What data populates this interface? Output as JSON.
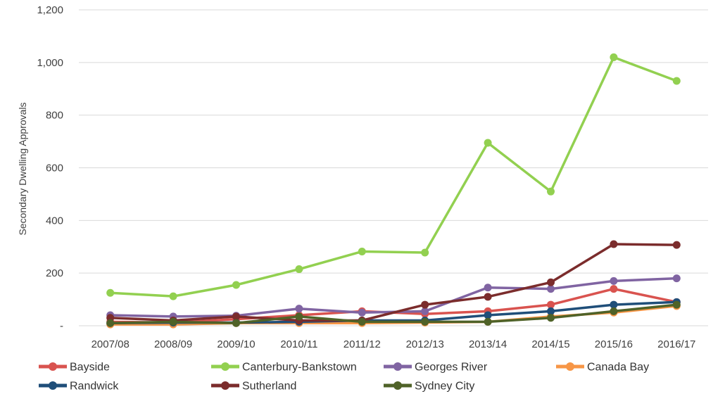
{
  "chart_data": {
    "type": "line",
    "title": "",
    "xlabel": "",
    "ylabel": "Secondary Dwelling Approvals",
    "ylim": [
      0,
      1200
    ],
    "y_ticks": [
      0,
      200,
      400,
      600,
      800,
      1000,
      1200
    ],
    "y_tick_labels": [
      "-",
      "200",
      "400",
      "600",
      "800",
      "1,000",
      "1,200"
    ],
    "grid": true,
    "legend_position": "bottom",
    "categories": [
      "2007/08",
      "2008/09",
      "2009/10",
      "2010/11",
      "2011/12",
      "2012/13",
      "2013/14",
      "2014/15",
      "2015/16",
      "2016/17"
    ],
    "series": [
      {
        "name": "Bayside",
        "color": "#d9534f",
        "values": [
          15,
          12,
          25,
          40,
          55,
          45,
          55,
          80,
          140,
          90
        ]
      },
      {
        "name": "Canterbury-Bankstown",
        "color": "#92d050",
        "values": [
          125,
          112,
          155,
          215,
          282,
          278,
          695,
          510,
          1020,
          930
        ]
      },
      {
        "name": "Georges River",
        "color": "#8064a2",
        "values": [
          40,
          35,
          38,
          65,
          50,
          55,
          145,
          140,
          170,
          180
        ]
      },
      {
        "name": "Canada Bay",
        "color": "#f79646",
        "values": [
          5,
          5,
          10,
          10,
          10,
          12,
          15,
          35,
          50,
          75
        ]
      },
      {
        "name": "Randwick",
        "color": "#1f4e79",
        "values": [
          10,
          12,
          12,
          15,
          20,
          20,
          40,
          55,
          80,
          90
        ]
      },
      {
        "name": "Sutherland",
        "color": "#7b2c2c",
        "values": [
          30,
          20,
          35,
          20,
          20,
          80,
          110,
          165,
          310,
          307
        ]
      },
      {
        "name": "Sydney City",
        "color": "#4f6228",
        "values": [
          10,
          15,
          10,
          35,
          15,
          15,
          15,
          30,
          55,
          80
        ]
      }
    ]
  }
}
